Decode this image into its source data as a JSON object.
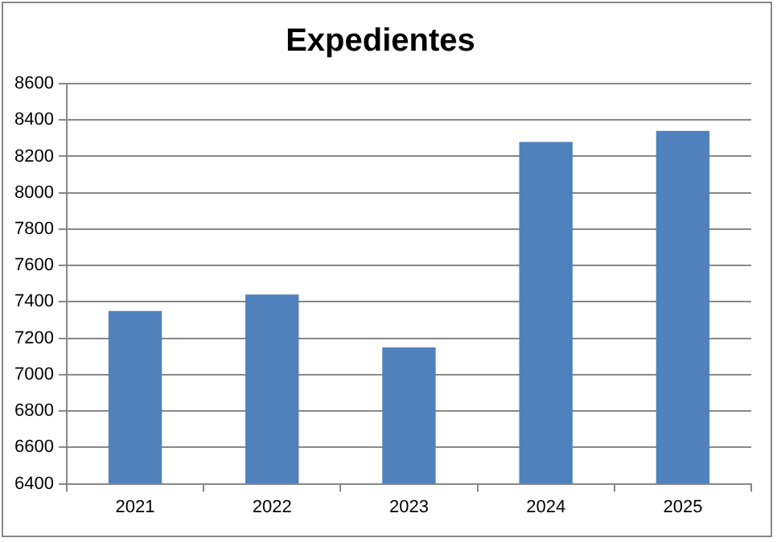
{
  "chart_data": {
    "type": "bar",
    "title": "Expedientes",
    "categories": [
      "2021",
      "2022",
      "2023",
      "2024",
      "2025"
    ],
    "values": [
      7350,
      7440,
      7150,
      8280,
      8340
    ],
    "color": "#4f81bd",
    "ylim": [
      6400,
      8600
    ],
    "yticks": [
      6400,
      6600,
      6800,
      7000,
      7200,
      7400,
      7600,
      7800,
      8000,
      8200,
      8400,
      8600
    ],
    "grid": "y",
    "legend": false
  }
}
